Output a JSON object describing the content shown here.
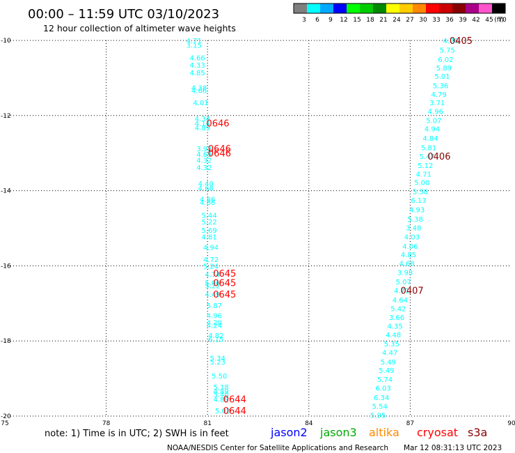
{
  "header": {
    "title": "00:00 – 11:59 UTC 03/10/2023",
    "subtitle": "12 hour collection of altimeter wave heights"
  },
  "legend": {
    "unit": "(ft)",
    "bins": [
      {
        "label": "3",
        "color": "#7f7f7f"
      },
      {
        "label": "6",
        "color": "#00ffff"
      },
      {
        "label": "9",
        "color": "#00aaff"
      },
      {
        "label": "12",
        "color": "#0000ff"
      },
      {
        "label": "15",
        "color": "#00ff00"
      },
      {
        "label": "18",
        "color": "#00cc00"
      },
      {
        "label": "21",
        "color": "#008800"
      },
      {
        "label": "24",
        "color": "#ffff00"
      },
      {
        "label": "27",
        "color": "#ffcc00"
      },
      {
        "label": "30",
        "color": "#ff8800"
      },
      {
        "label": "33",
        "color": "#ff0000"
      },
      {
        "label": "36",
        "color": "#cc0000"
      },
      {
        "label": "39",
        "color": "#880000"
      },
      {
        "label": "42",
        "color": "#aa0088"
      },
      {
        "label": "45",
        "color": "#ff55cc"
      },
      {
        "label": "70",
        "color": "#000000"
      }
    ]
  },
  "footer": {
    "note": "note: 1) Time is in UTC; 2) SWH is in feet",
    "missions": [
      {
        "name": "jason2",
        "color": "#0000ff"
      },
      {
        "name": "jason3",
        "color": "#00aa00"
      },
      {
        "name": "altika",
        "color": "#ff8800"
      },
      {
        "name": "cryosat",
        "color": "#ff0000"
      },
      {
        "name": "s3a",
        "color": "#880000"
      }
    ],
    "credit": "NOAA/NESDIS Center for Satellite Applications and Research",
    "timestamp": "Mar 12 08:31:13 UTC 2023"
  },
  "chart_data": {
    "type": "scatter",
    "title": "00:00 – 11:59 UTC 03/10/2023",
    "xlim": [
      75,
      90
    ],
    "ylim": [
      -20,
      -10
    ],
    "xticks": [
      75,
      78,
      81,
      84,
      87,
      90
    ],
    "yticks": [
      -10,
      -12,
      -14,
      -16,
      -18,
      -20
    ],
    "grid": true,
    "value_color": "#00ffff",
    "series": [
      {
        "points": [
          {
            "x": 80.6,
            "y": -10.0,
            "v": "4.71"
          },
          {
            "x": 80.6,
            "y": -10.12,
            "v": "3.15"
          },
          {
            "x": 80.7,
            "y": -10.45,
            "v": "4.66"
          },
          {
            "x": 80.7,
            "y": -10.65,
            "v": "4.33"
          },
          {
            "x": 80.7,
            "y": -10.85,
            "v": "4.85"
          },
          {
            "x": 80.75,
            "y": -11.25,
            "v": "4.38"
          },
          {
            "x": 80.75,
            "y": -11.33,
            "v": "4.66"
          },
          {
            "x": 80.8,
            "y": -11.65,
            "v": "4.01"
          },
          {
            "x": 80.85,
            "y": -12.08,
            "v": "4.34"
          },
          {
            "x": 80.85,
            "y": -12.2,
            "v": "4.14"
          },
          {
            "x": 80.85,
            "y": -12.32,
            "v": "4.89"
          },
          {
            "x": 80.9,
            "y": -12.88,
            "v": "3.92"
          },
          {
            "x": 80.9,
            "y": -13.02,
            "v": "4.69"
          },
          {
            "x": 80.9,
            "y": -13.18,
            "v": "4.32"
          },
          {
            "x": 80.9,
            "y": -13.38,
            "v": "4.32"
          },
          {
            "x": 80.95,
            "y": -13.8,
            "v": "4.40"
          },
          {
            "x": 80.95,
            "y": -13.92,
            "v": "4.68"
          },
          {
            "x": 81.0,
            "y": -14.22,
            "v": "4.86"
          },
          {
            "x": 81.0,
            "y": -14.3,
            "v": "4.86"
          },
          {
            "x": 81.05,
            "y": -14.65,
            "v": "5.44"
          },
          {
            "x": 81.05,
            "y": -14.82,
            "v": "5.22"
          },
          {
            "x": 81.05,
            "y": -15.05,
            "v": "5.69"
          },
          {
            "x": 81.05,
            "y": -15.22,
            "v": "4.81"
          },
          {
            "x": 81.1,
            "y": -15.5,
            "v": "4.94"
          },
          {
            "x": 81.1,
            "y": -15.83,
            "v": "4.72"
          },
          {
            "x": 81.1,
            "y": -16.0,
            "v": "5.24"
          },
          {
            "x": 81.15,
            "y": -16.22,
            "v": "4.74"
          },
          {
            "x": 81.15,
            "y": -16.45,
            "v": "5.96"
          },
          {
            "x": 81.15,
            "y": -16.52,
            "v": "5.22"
          },
          {
            "x": 81.15,
            "y": -16.75,
            "v": "4.49"
          },
          {
            "x": 81.2,
            "y": -17.05,
            "v": "5.87"
          },
          {
            "x": 81.2,
            "y": -17.32,
            "v": "4.96"
          },
          {
            "x": 81.2,
            "y": -17.5,
            "v": "4.20"
          },
          {
            "x": 81.2,
            "y": -17.58,
            "v": "4.24"
          },
          {
            "x": 81.25,
            "y": -17.85,
            "v": "4.82"
          },
          {
            "x": 81.25,
            "y": -17.95,
            "v": "6.15"
          },
          {
            "x": 81.3,
            "y": -18.45,
            "v": "5.34"
          },
          {
            "x": 81.3,
            "y": -18.55,
            "v": "5.23"
          },
          {
            "x": 81.35,
            "y": -18.92,
            "v": "5.50"
          },
          {
            "x": 81.4,
            "y": -19.22,
            "v": "5.18"
          },
          {
            "x": 81.4,
            "y": -19.33,
            "v": "4.89"
          },
          {
            "x": 81.4,
            "y": -19.42,
            "v": "5.40"
          },
          {
            "x": 81.4,
            "y": -19.55,
            "v": "4.89"
          },
          {
            "x": 81.45,
            "y": -19.85,
            "v": "5.03"
          },
          {
            "x": 88.2,
            "y": -10.0,
            "v": "4.70"
          },
          {
            "x": 88.1,
            "y": -10.25,
            "v": "5.75"
          },
          {
            "x": 88.05,
            "y": -10.5,
            "v": "6.02"
          },
          {
            "x": 88.0,
            "y": -10.72,
            "v": "5.89"
          },
          {
            "x": 87.95,
            "y": -10.95,
            "v": "5.01"
          },
          {
            "x": 87.9,
            "y": -11.2,
            "v": "5.36"
          },
          {
            "x": 87.85,
            "y": -11.43,
            "v": "4.79"
          },
          {
            "x": 87.8,
            "y": -11.65,
            "v": "3.71"
          },
          {
            "x": 87.75,
            "y": -11.88,
            "v": "4.96"
          },
          {
            "x": 87.7,
            "y": -12.12,
            "v": "5.07"
          },
          {
            "x": 87.65,
            "y": -12.35,
            "v": "4.94"
          },
          {
            "x": 87.6,
            "y": -12.6,
            "v": "4.84"
          },
          {
            "x": 87.55,
            "y": -12.85,
            "v": "5.81"
          },
          {
            "x": 87.5,
            "y": -13.08,
            "v": "5.47"
          },
          {
            "x": 87.45,
            "y": -13.32,
            "v": "5.12"
          },
          {
            "x": 87.4,
            "y": -13.55,
            "v": "4.71"
          },
          {
            "x": 87.35,
            "y": -13.78,
            "v": "5.00"
          },
          {
            "x": 87.3,
            "y": -14.02,
            "v": "5.58"
          },
          {
            "x": 87.25,
            "y": -14.25,
            "v": "6.13"
          },
          {
            "x": 87.2,
            "y": -14.5,
            "v": "4.93"
          },
          {
            "x": 87.15,
            "y": -14.75,
            "v": "5.38"
          },
          {
            "x": 87.1,
            "y": -14.98,
            "v": "3.48"
          },
          {
            "x": 87.05,
            "y": -15.22,
            "v": "4.03"
          },
          {
            "x": 87.0,
            "y": -15.47,
            "v": "4.06"
          },
          {
            "x": 86.95,
            "y": -15.7,
            "v": "4.85"
          },
          {
            "x": 86.9,
            "y": -15.93,
            "v": "4.68"
          },
          {
            "x": 86.85,
            "y": -16.17,
            "v": "3.98"
          },
          {
            "x": 86.8,
            "y": -16.42,
            "v": "5.07"
          },
          {
            "x": 86.75,
            "y": -16.65,
            "v": "4.71"
          },
          {
            "x": 86.7,
            "y": -16.9,
            "v": "4.64"
          },
          {
            "x": 86.65,
            "y": -17.13,
            "v": "5.42"
          },
          {
            "x": 86.6,
            "y": -17.37,
            "v": "3.66"
          },
          {
            "x": 86.55,
            "y": -17.6,
            "v": "4.35"
          },
          {
            "x": 86.5,
            "y": -17.83,
            "v": "4.48"
          },
          {
            "x": 86.45,
            "y": -18.07,
            "v": "5.35"
          },
          {
            "x": 86.4,
            "y": -18.3,
            "v": "4.47"
          },
          {
            "x": 86.35,
            "y": -18.55,
            "v": "5.49"
          },
          {
            "x": 86.3,
            "y": -18.78,
            "v": "5.49"
          },
          {
            "x": 86.25,
            "y": -19.02,
            "v": "5.74"
          },
          {
            "x": 86.2,
            "y": -19.25,
            "v": "6.03"
          },
          {
            "x": 86.15,
            "y": -19.5,
            "v": "6.34"
          },
          {
            "x": 86.1,
            "y": -19.73,
            "v": "5.54"
          },
          {
            "x": 86.05,
            "y": -19.97,
            "v": "5.95"
          }
        ]
      }
    ],
    "annotations": [
      {
        "x": 80.8,
        "y": -12.2,
        "text": "0646",
        "color": "#ff0000"
      },
      {
        "x": 80.85,
        "y": -12.88,
        "text": "0646",
        "color": "#ff0000"
      },
      {
        "x": 80.85,
        "y": -13.0,
        "text": "0646",
        "color": "#ff0000"
      },
      {
        "x": 81.0,
        "y": -16.2,
        "text": "0645",
        "color": "#ff0000"
      },
      {
        "x": 81.0,
        "y": -16.45,
        "text": "0645",
        "color": "#ff0000"
      },
      {
        "x": 81.0,
        "y": -16.75,
        "text": "0645",
        "color": "#ff0000"
      },
      {
        "x": 81.3,
        "y": -19.55,
        "text": "0644",
        "color": "#ff0000"
      },
      {
        "x": 81.3,
        "y": -19.85,
        "text": "0644",
        "color": "#ff0000"
      },
      {
        "x": 88.0,
        "y": -10.0,
        "text": "0405",
        "color": "#880000"
      },
      {
        "x": 87.35,
        "y": -13.08,
        "text": "0406",
        "color": "#880000"
      },
      {
        "x": 86.55,
        "y": -16.65,
        "text": "0407",
        "color": "#880000"
      }
    ]
  }
}
